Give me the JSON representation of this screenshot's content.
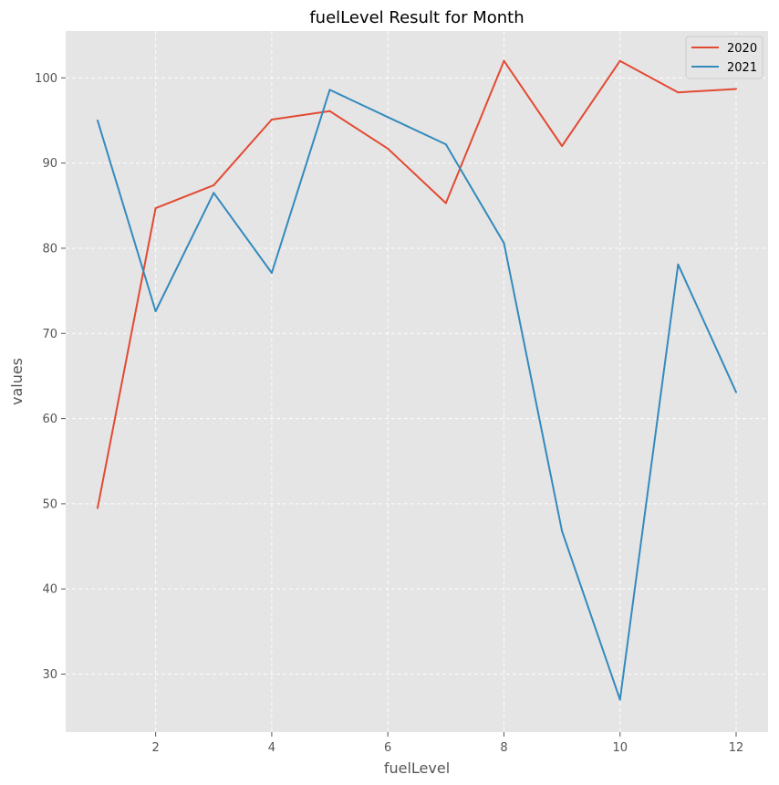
{
  "chart_data": {
    "type": "line",
    "title": "fuelLevel Result for Month",
    "xlabel": "fuelLevel",
    "ylabel": "values",
    "x": [
      1,
      2,
      3,
      4,
      5,
      6,
      7,
      8,
      9,
      10,
      11,
      12
    ],
    "xlim": [
      0.45,
      12.55
    ],
    "ylim": [
      23.2,
      105.5
    ],
    "xticks": [
      2,
      4,
      6,
      8,
      10,
      12
    ],
    "yticks": [
      30,
      40,
      50,
      60,
      70,
      80,
      90,
      100
    ],
    "grid": true,
    "legend_position": "top-right",
    "background": "#e5e5e5",
    "series": [
      {
        "name": "2020",
        "color": "#e24a33",
        "values": [
          49.5,
          84.7,
          87.4,
          95.1,
          96.1,
          91.7,
          85.3,
          102.0,
          92.0,
          102.0,
          98.3,
          98.7
        ]
      },
      {
        "name": "2021",
        "color": "#348abd",
        "values": [
          95.0,
          72.6,
          86.5,
          77.1,
          98.6,
          95.4,
          92.2,
          80.6,
          46.8,
          27.0,
          78.1,
          63.1
        ]
      }
    ]
  }
}
